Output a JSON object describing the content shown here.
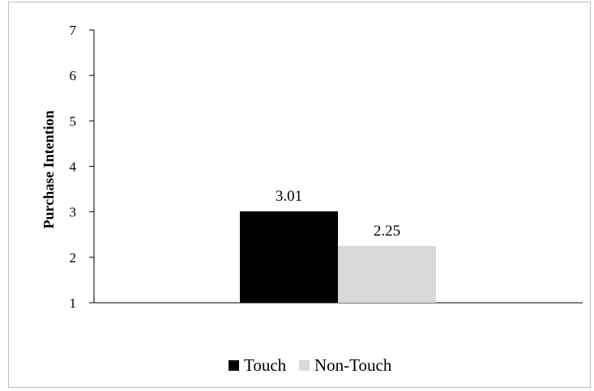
{
  "chart_data": {
    "type": "bar",
    "title": "",
    "xlabel": "",
    "ylabel": "Purchase Intention",
    "ylim": [
      1,
      7
    ],
    "yticks": [
      1,
      2,
      3,
      4,
      5,
      6,
      7
    ],
    "grid": false,
    "legend_position": "bottom",
    "categories": [
      ""
    ],
    "series": [
      {
        "name": "Touch",
        "values": [
          3.01
        ],
        "data_labels": [
          "3.01"
        ],
        "color": "#000000"
      },
      {
        "name": "Non-Touch",
        "values": [
          2.25
        ],
        "data_labels": [
          "2.25"
        ],
        "color": "#d9d9d9"
      }
    ]
  }
}
